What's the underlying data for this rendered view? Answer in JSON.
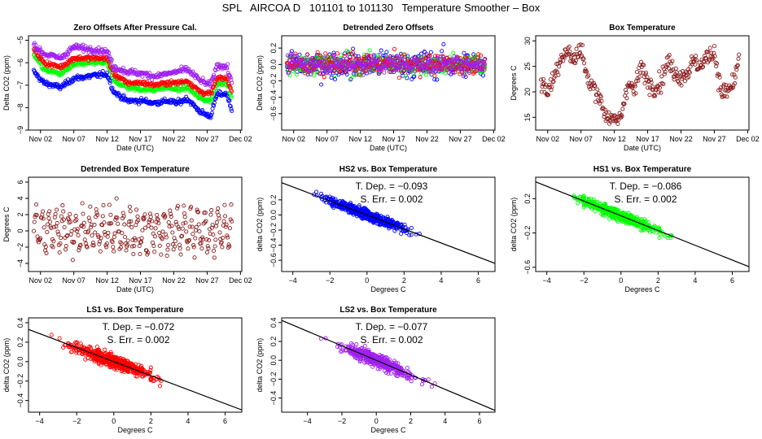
{
  "title": "SPL   AIRCOA D   101101 to 101130   Temperature Smoother – Box",
  "colors": {
    "hs2": "#0000ff",
    "hs1": "#00ff00",
    "ls1": "#ff0000",
    "ls2": "#a020f0",
    "box": "#8b1a1a",
    "fit": "#000000"
  },
  "chart_data": [
    {
      "id": "zero",
      "type": "scatter",
      "title": "Zero Offsets After Pressure Cal.",
      "xlabel": "Date (UTC)",
      "ylabel": "Delta CO2 (ppm)",
      "x_ticks": [
        "Nov 02",
        "Nov 07",
        "Nov 12",
        "Nov 17",
        "Nov 22",
        "Nov 27",
        "Dec 02"
      ],
      "x_tick_days": [
        2,
        7,
        12,
        17,
        22,
        27,
        32
      ],
      "xlim": [
        0.2,
        32.2
      ],
      "ylim": [
        -9,
        -4.8
      ],
      "y_ticks": [
        -9,
        -8,
        -7,
        -6,
        -5
      ],
      "series": [
        {
          "color": "hs2",
          "profile": [
            [
              1,
              -6.4
            ],
            [
              2.5,
              -6.9
            ],
            [
              5,
              -7.1
            ],
            [
              7,
              -6.7
            ],
            [
              9.5,
              -6.6
            ],
            [
              12,
              -6.5
            ],
            [
              13,
              -7.3
            ],
            [
              15,
              -7.7
            ],
            [
              17.5,
              -7.7
            ],
            [
              19,
              -7.8
            ],
            [
              21,
              -7.7
            ],
            [
              22.5,
              -7.8
            ],
            [
              24,
              -7.6
            ],
            [
              26,
              -8.2
            ],
            [
              27.5,
              -8.4
            ],
            [
              28.5,
              -7.4
            ],
            [
              30,
              -7.4
            ],
            [
              30.7,
              -8.2
            ]
          ],
          "noise": 0.18
        },
        {
          "color": "hs1",
          "profile": [
            [
              1,
              -5.6
            ],
            [
              2.5,
              -6.3
            ],
            [
              5,
              -6.5
            ],
            [
              7,
              -6.1
            ],
            [
              9.5,
              -6.0
            ],
            [
              12,
              -6.0
            ],
            [
              13,
              -6.8
            ],
            [
              15,
              -7.1
            ],
            [
              17.5,
              -7.2
            ],
            [
              19,
              -7.2
            ],
            [
              21,
              -7.1
            ],
            [
              22.5,
              -7.2
            ],
            [
              24,
              -7.1
            ],
            [
              26,
              -7.6
            ],
            [
              27.5,
              -7.7
            ],
            [
              28.5,
              -6.9
            ],
            [
              30,
              -6.9
            ],
            [
              30.7,
              -7.6
            ]
          ],
          "noise": 0.15
        },
        {
          "color": "ls1",
          "profile": [
            [
              1,
              -5.4
            ],
            [
              2.5,
              -6.0
            ],
            [
              5,
              -6.2
            ],
            [
              7,
              -5.8
            ],
            [
              9.5,
              -5.8
            ],
            [
              12,
              -5.8
            ],
            [
              13,
              -6.5
            ],
            [
              15,
              -6.9
            ],
            [
              17.5,
              -6.9
            ],
            [
              19,
              -7.0
            ],
            [
              21,
              -6.9
            ],
            [
              22.5,
              -6.9
            ],
            [
              24,
              -6.8
            ],
            [
              26,
              -7.3
            ],
            [
              27.5,
              -7.4
            ],
            [
              28.5,
              -6.7
            ],
            [
              30,
              -6.7
            ],
            [
              30.7,
              -7.3
            ]
          ],
          "noise": 0.15
        },
        {
          "color": "ls2",
          "profile": [
            [
              1,
              -5.2
            ],
            [
              2.5,
              -5.6
            ],
            [
              5,
              -5.8
            ],
            [
              7,
              -5.3
            ],
            [
              9.5,
              -5.4
            ],
            [
              12,
              -5.5
            ],
            [
              13,
              -6.2
            ],
            [
              15,
              -6.4
            ],
            [
              17.5,
              -6.5
            ],
            [
              19,
              -6.6
            ],
            [
              21,
              -6.5
            ],
            [
              22.5,
              -6.4
            ],
            [
              24,
              -6.3
            ],
            [
              26,
              -6.8
            ],
            [
              27.5,
              -7.0
            ],
            [
              28.5,
              -6.1
            ],
            [
              30,
              -6.2
            ],
            [
              30.7,
              -6.9
            ]
          ],
          "noise": 0.2
        }
      ]
    },
    {
      "id": "detrended",
      "type": "scatter",
      "title": "Detrended Zero Offsets",
      "xlabel": "Date (UTC)",
      "ylabel": "Delta CO2 (ppm)",
      "x_ticks": [
        "Nov 02",
        "Nov 07",
        "Nov 12",
        "Nov 17",
        "Nov 22",
        "Nov 27",
        "Dec 02"
      ],
      "x_tick_days": [
        2,
        7,
        12,
        17,
        22,
        27,
        32
      ],
      "xlim": [
        0.2,
        32.2
      ],
      "ylim": [
        -0.8,
        0.35
      ],
      "y_ticks": [
        -0.6,
        -0.4,
        -0.2,
        0.0,
        0.2
      ],
      "series": [
        {
          "color": "hs2",
          "profile": [
            [
              1,
              0.0
            ],
            [
              31,
              0.0
            ]
          ],
          "noise": 0.25
        },
        {
          "color": "hs1",
          "profile": [
            [
              1,
              0.0
            ],
            [
              31,
              0.0
            ]
          ],
          "noise": 0.2
        },
        {
          "color": "ls1",
          "profile": [
            [
              1,
              0.0
            ],
            [
              31,
              0.0
            ]
          ],
          "noise": 0.18
        },
        {
          "color": "ls2",
          "profile": [
            [
              1,
              0.0
            ],
            [
              31,
              0.0
            ]
          ],
          "noise": 0.16
        }
      ]
    },
    {
      "id": "boxtemp",
      "type": "scatter",
      "title": "Box Temperature",
      "xlabel": "Date (UTC)",
      "ylabel": "Degrees C",
      "x_ticks": [
        "Nov 02",
        "Nov 07",
        "Nov 12",
        "Nov 17",
        "Nov 22",
        "Nov 27",
        "Dec 02"
      ],
      "x_tick_days": [
        2,
        7,
        12,
        17,
        22,
        27,
        32
      ],
      "xlim": [
        0.2,
        32.2
      ],
      "ylim": [
        12.5,
        31
      ],
      "y_ticks": [
        15,
        20,
        25,
        30
      ],
      "series": [
        {
          "color": "box",
          "profile": [
            [
              1,
              22
            ],
            [
              2,
              20
            ],
            [
              3,
              23
            ],
            [
              4,
              27
            ],
            [
              5,
              28
            ],
            [
              6,
              26
            ],
            [
              7,
              29
            ],
            [
              8,
              22
            ],
            [
              9.5,
              20
            ],
            [
              10.5,
              16
            ],
            [
              12,
              14
            ],
            [
              13,
              15
            ],
            [
              14,
              22
            ],
            [
              15,
              20
            ],
            [
              16,
              25
            ],
            [
              17,
              22
            ],
            [
              18,
              21
            ],
            [
              19,
              22
            ],
            [
              20,
              26
            ],
            [
              21,
              24
            ],
            [
              22,
              23
            ],
            [
              23,
              24
            ],
            [
              24,
              26
            ],
            [
              25,
              25
            ],
            [
              26,
              27
            ],
            [
              27,
              28
            ],
            [
              28,
              20
            ],
            [
              29,
              20
            ],
            [
              30,
              22
            ],
            [
              30.7,
              27
            ]
          ],
          "noise": 2.8
        }
      ]
    },
    {
      "id": "detbox",
      "type": "scatter",
      "title": "Detrended Box Temperature",
      "xlabel": "Date (UTC)",
      "ylabel": "Degrees C",
      "x_ticks": [
        "Nov 02",
        "Nov 07",
        "Nov 12",
        "Nov 17",
        "Nov 22",
        "Nov 27",
        "Dec 02"
      ],
      "x_tick_days": [
        2,
        7,
        12,
        17,
        22,
        27,
        32
      ],
      "xlim": [
        0.2,
        32.2
      ],
      "ylim": [
        -5,
        6.6
      ],
      "y_ticks": [
        -4,
        -2,
        0,
        2,
        4,
        6
      ],
      "series": [
        {
          "color": "box",
          "profile": [
            [
              1,
              0
            ],
            [
              31,
              0
            ]
          ],
          "noise": 4.5
        }
      ]
    },
    {
      "id": "hs2",
      "type": "scatter",
      "title": "HS2 vs. Box Temperature",
      "xlabel": "Degrees C",
      "ylabel": "delta CO2 (ppm)",
      "xlim": [
        -4.6,
        6.9
      ],
      "ylim": [
        -0.75,
        0.5
      ],
      "x_ticks": [
        -4,
        -2,
        0,
        2,
        4,
        6
      ],
      "y_ticks": [
        -0.6,
        -0.4,
        -0.2,
        0.0,
        0.2
      ],
      "color": "hs2",
      "slope": -0.093,
      "stat_dep_label": "T. Dep. =",
      "stat_dep": "−0.093",
      "stat_err_label": "S. Err. =",
      "stat_err": "0.002"
    },
    {
      "id": "hs1",
      "type": "scatter",
      "title": "HS1 vs. Box Temperature",
      "xlabel": "Degrees C",
      "ylabel": "delta CO2 (ppm)",
      "xlim": [
        -4.6,
        6.9
      ],
      "ylim": [
        -0.65,
        0.45
      ],
      "x_ticks": [
        -4,
        -2,
        0,
        2,
        4,
        6
      ],
      "y_ticks": [
        -0.6,
        -0.2,
        0.2
      ],
      "color": "hs1",
      "slope": -0.086,
      "stat_dep_label": "T. Dep. =",
      "stat_dep": "−0.086",
      "stat_err_label": "S. Err. =",
      "stat_err": "0.002"
    },
    {
      "id": "ls1",
      "type": "scatter",
      "title": "LS1 vs. Box Temperature",
      "xlabel": "Degrees C",
      "ylabel": "delta CO2 (ppm)",
      "xlim": [
        -4.6,
        6.9
      ],
      "ylim": [
        -0.52,
        0.45
      ],
      "x_ticks": [
        -4,
        -2,
        0,
        2,
        4,
        6
      ],
      "y_ticks": [
        -0.4,
        -0.2,
        0.0,
        0.2,
        0.4
      ],
      "color": "ls1",
      "slope": -0.072,
      "stat_dep_label": "T. Dep. =",
      "stat_dep": "−0.072",
      "stat_err_label": "S. Err. =",
      "stat_err": "0.002"
    },
    {
      "id": "ls2",
      "type": "scatter",
      "title": "LS2 vs. Box Temperature",
      "xlabel": "Degrees C",
      "ylabel": "delta CO2 (ppm)",
      "xlim": [
        -5.5,
        6.9
      ],
      "ylim": [
        -0.55,
        0.45
      ],
      "x_ticks": [
        -4,
        -2,
        0,
        2,
        4,
        6
      ],
      "y_ticks": [
        -0.4,
        -0.2,
        0.0,
        0.2,
        0.4
      ],
      "color": "ls2",
      "slope": -0.077,
      "stat_dep_label": "T. Dep. =",
      "stat_dep": "−0.077",
      "stat_err_label": "S. Err. =",
      "stat_err": "0.002"
    }
  ]
}
